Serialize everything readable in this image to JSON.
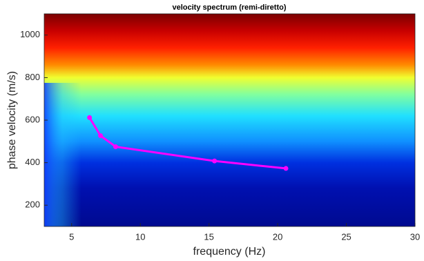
{
  "chart_data": {
    "type": "line",
    "title": "velocity spectrum (remi-diretto)",
    "x_label": "frequency (Hz)",
    "y_label": "phase velocity (m/s)",
    "series": [
      {
        "color": "#ff00ff",
        "x": [
          6.3,
          7.1,
          8.2,
          15.4,
          20.6
        ],
        "values": [
          612,
          527,
          475,
          408,
          373
        ]
      }
    ],
    "xlim": [
      3,
      30
    ],
    "xticks": [
      5,
      10,
      15,
      20,
      25,
      30
    ],
    "ylim": [
      100,
      1100
    ],
    "yticks": [
      200,
      400,
      600,
      800,
      1000
    ],
    "grid": false
  }
}
